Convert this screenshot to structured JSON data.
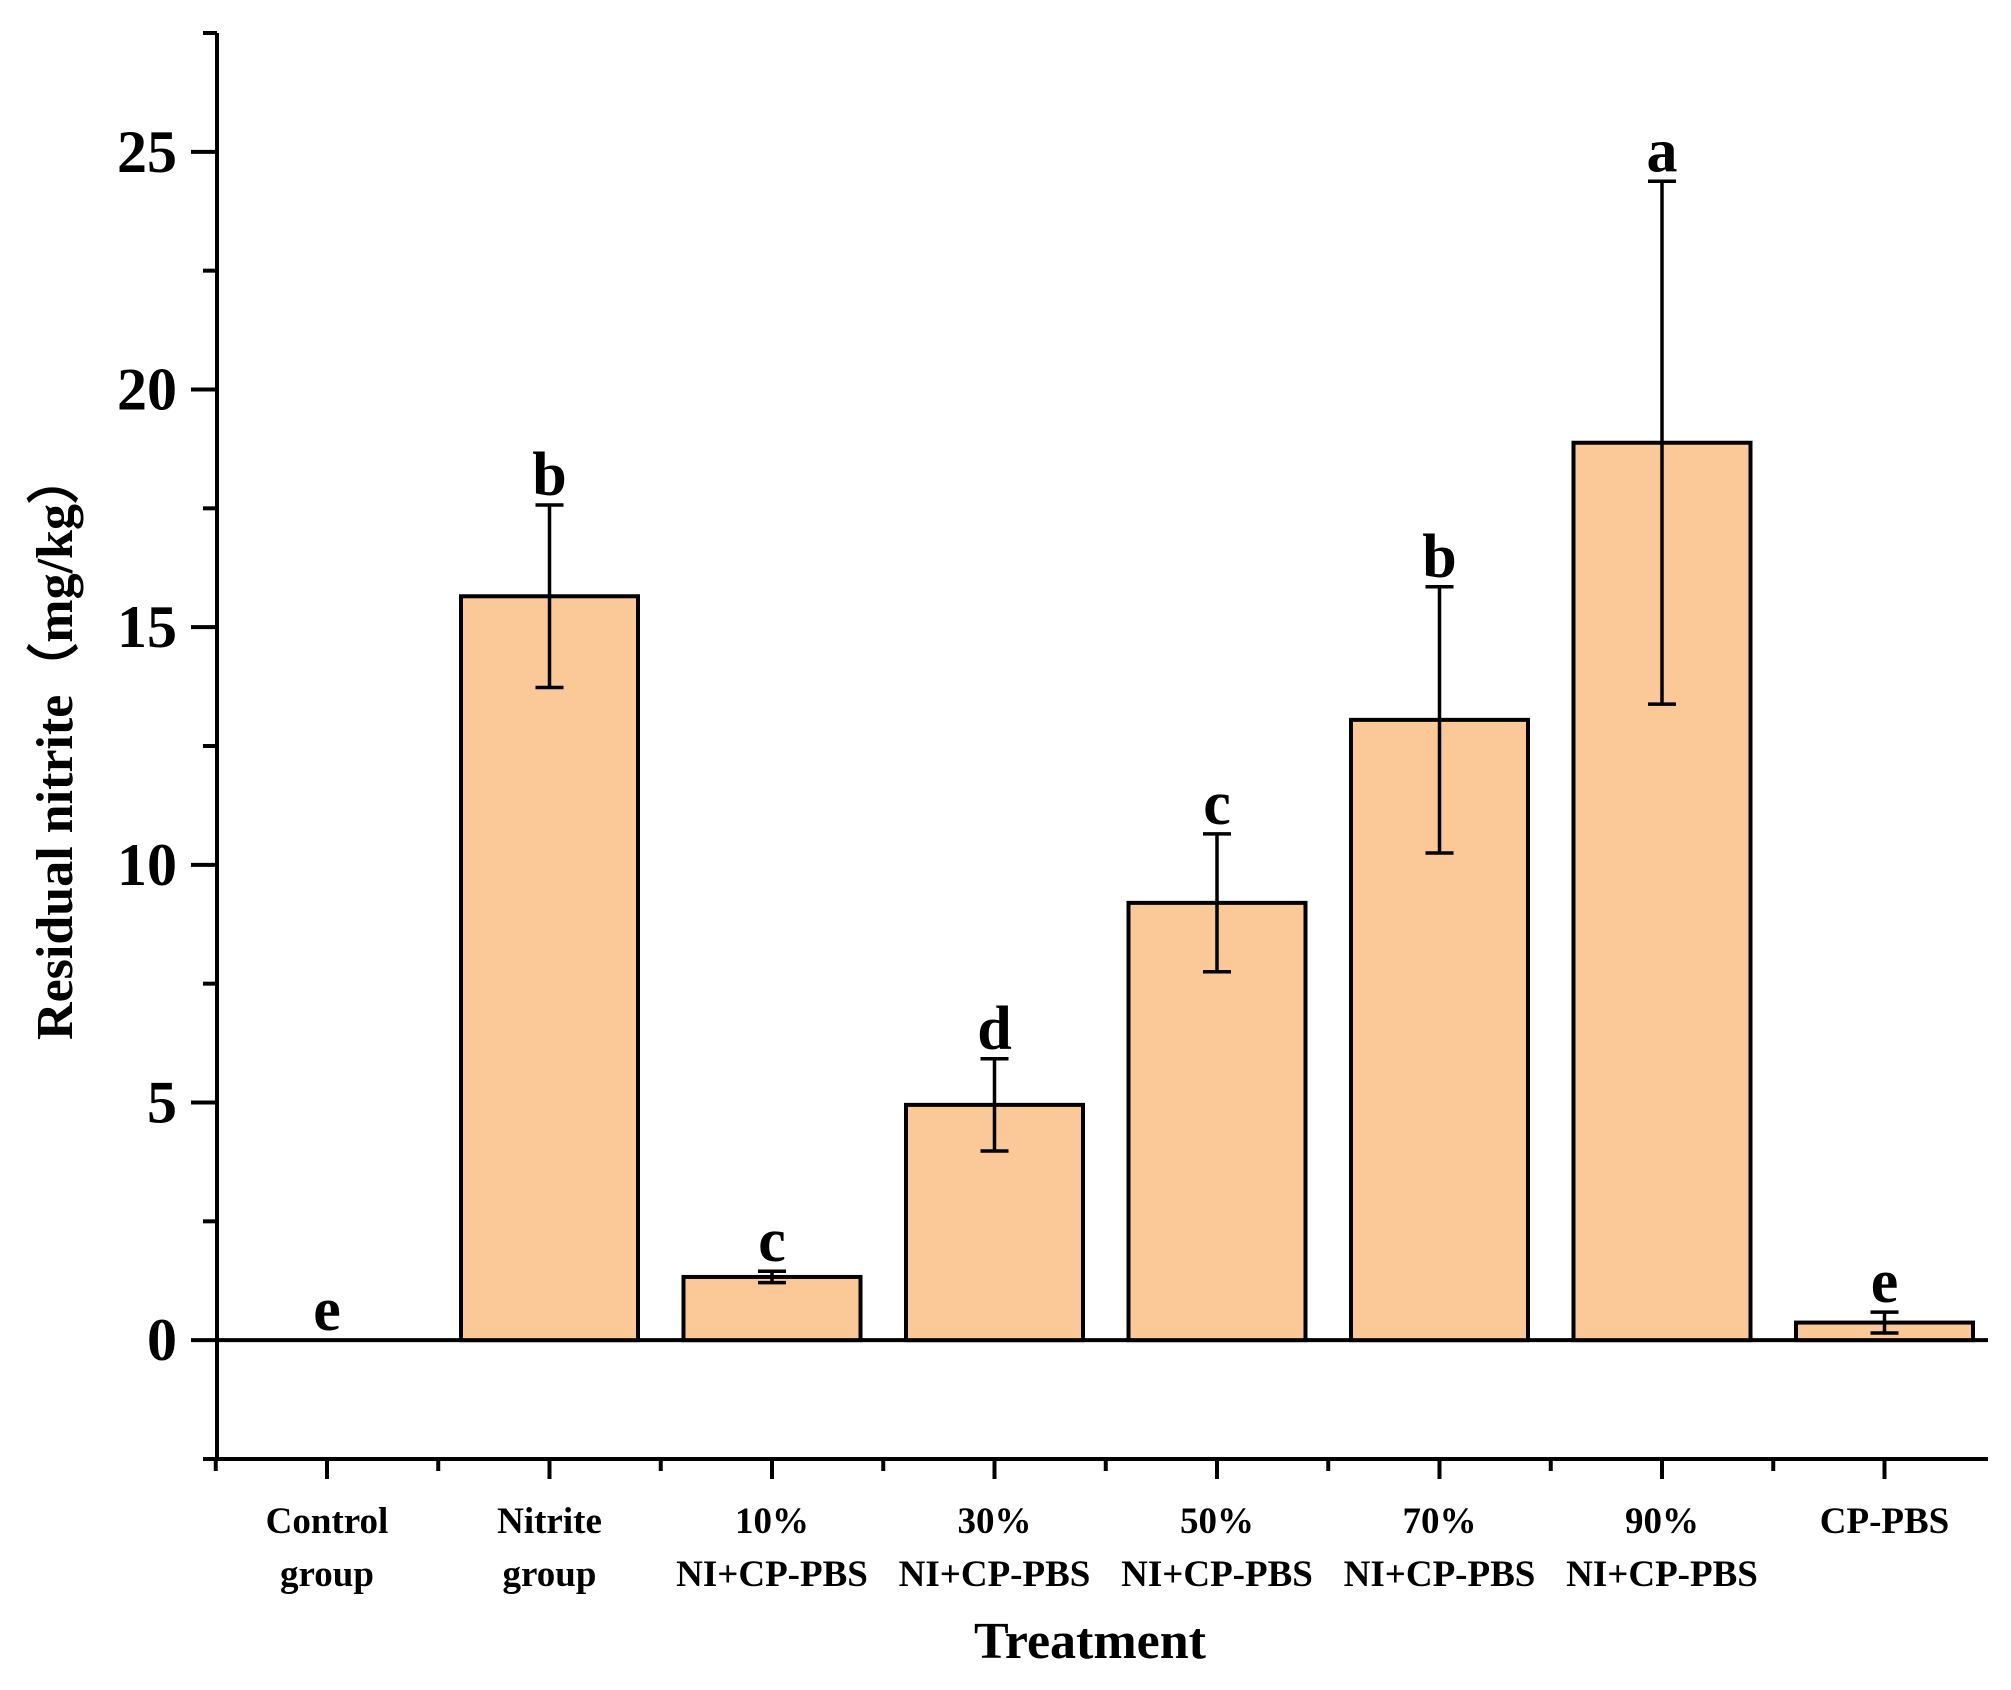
{
  "chart_data": {
    "type": "bar",
    "title": "",
    "xlabel": "Treatment",
    "ylabel": "Residual nitrite（mg/kg）",
    "ylim": [
      -2.5,
      27.5
    ],
    "yticks": [
      0,
      5,
      10,
      15,
      20,
      25
    ],
    "grid": false,
    "categories": [
      [
        "Control",
        "group"
      ],
      [
        "Nitrite",
        "group"
      ],
      [
        "10%",
        "NI+CP-PBS"
      ],
      [
        "30%",
        "NI+CP-PBS"
      ],
      [
        "50%",
        "NI+CP-PBS"
      ],
      [
        "70%",
        "NI+CP-PBS"
      ],
      [
        "90%",
        "NI+CP-PBS"
      ],
      [
        "CP-PBS"
      ]
    ],
    "values": [
      0,
      15.65,
      1.33,
      4.95,
      9.2,
      13.05,
      18.88,
      0.37
    ],
    "errors": [
      0,
      1.92,
      0.12,
      0.97,
      1.45,
      2.8,
      5.5,
      0.22
    ],
    "significance": [
      "e",
      "b",
      "c",
      "d",
      "c",
      "b",
      "a",
      "e"
    ],
    "colors": {
      "bar_fill": "#FBC898",
      "bar_stroke": "#000000",
      "axis": "#000000"
    }
  }
}
